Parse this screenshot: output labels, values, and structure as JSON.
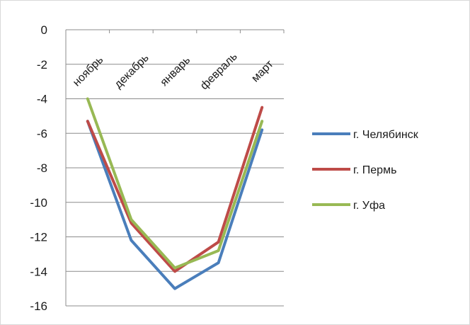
{
  "chart_data": {
    "type": "line",
    "categories": [
      "ноябрь",
      "декабрь",
      "январь",
      "февраль",
      "март"
    ],
    "series": [
      {
        "name": "г. Челябинск",
        "color": "#4a7ebb",
        "values": [
          -5.3,
          -12.2,
          -15.0,
          -13.5,
          -5.8
        ]
      },
      {
        "name": "г. Пермь",
        "color": "#be4b48",
        "values": [
          -5.3,
          -11.2,
          -14.0,
          -12.3,
          -4.5
        ]
      },
      {
        "name": "г. Уфа",
        "color": "#98b954",
        "values": [
          -4.0,
          -11.0,
          -13.8,
          -12.8,
          -5.3
        ]
      }
    ],
    "ylim": [
      -16,
      0
    ],
    "yticks": [
      0,
      -2,
      -4,
      -6,
      -8,
      -10,
      -12,
      -14,
      -16
    ],
    "grid": true,
    "legend": "right"
  }
}
